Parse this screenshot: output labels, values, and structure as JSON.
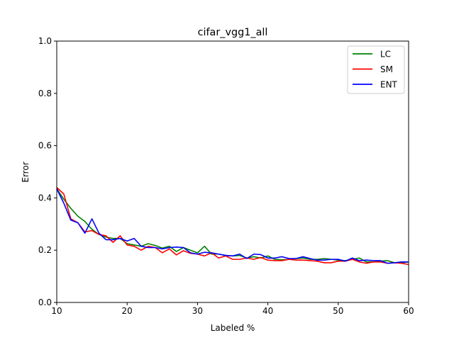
{
  "chart_data": {
    "type": "line",
    "title": "cifar_vgg1_all",
    "xlabel": "Labeled %",
    "ylabel": "Error",
    "xlim": [
      10,
      60
    ],
    "ylim": [
      0.0,
      1.0
    ],
    "xticks": [
      10,
      20,
      30,
      40,
      50,
      60
    ],
    "xtick_labels": [
      "10",
      "20",
      "30",
      "40",
      "50",
      "60"
    ],
    "yticks": [
      0.0,
      0.2,
      0.4,
      0.6,
      0.8,
      1.0
    ],
    "ytick_labels": [
      "0.0",
      "0.2",
      "0.4",
      "0.6",
      "0.8",
      "1.0"
    ],
    "grid": false,
    "legend_position": "top-right",
    "x": [
      10,
      11,
      12,
      13,
      14,
      15,
      16,
      17,
      18,
      19,
      20,
      21,
      22,
      23,
      24,
      25,
      26,
      27,
      28,
      29,
      30,
      31,
      32,
      33,
      34,
      35,
      36,
      37,
      38,
      39,
      40,
      41,
      42,
      43,
      44,
      45,
      46,
      47,
      48,
      49,
      50,
      51,
      52,
      53,
      54,
      55,
      56,
      57,
      58,
      59,
      60
    ],
    "series": [
      {
        "name": "LC",
        "color": "#008000",
        "values": [
          0.435,
          0.395,
          0.36,
          0.33,
          0.31,
          0.28,
          0.26,
          0.25,
          0.245,
          0.245,
          0.225,
          0.22,
          0.215,
          0.225,
          0.218,
          0.208,
          0.215,
          0.195,
          0.21,
          0.2,
          0.19,
          0.215,
          0.185,
          0.185,
          0.18,
          0.178,
          0.18,
          0.17,
          0.175,
          0.17,
          0.178,
          0.165,
          0.163,
          0.165,
          0.168,
          0.17,
          0.165,
          0.165,
          0.168,
          0.165,
          0.162,
          0.16,
          0.165,
          0.17,
          0.155,
          0.155,
          0.158,
          0.16,
          0.152,
          0.152,
          0.155
        ]
      },
      {
        "name": "SM",
        "color": "#ff0000",
        "values": [
          0.44,
          0.415,
          0.32,
          0.305,
          0.27,
          0.275,
          0.26,
          0.255,
          0.23,
          0.255,
          0.22,
          0.215,
          0.2,
          0.215,
          0.21,
          0.19,
          0.205,
          0.182,
          0.198,
          0.188,
          0.185,
          0.178,
          0.19,
          0.17,
          0.178,
          0.165,
          0.165,
          0.17,
          0.165,
          0.172,
          0.162,
          0.16,
          0.16,
          0.165,
          0.162,
          0.162,
          0.16,
          0.158,
          0.152,
          0.152,
          0.158,
          0.158,
          0.165,
          0.155,
          0.15,
          0.155,
          0.155,
          0.15,
          0.152,
          0.15,
          0.145
        ]
      },
      {
        "name": "ENT",
        "color": "#0000ff",
        "values": [
          0.435,
          0.38,
          0.315,
          0.305,
          0.265,
          0.32,
          0.265,
          0.24,
          0.24,
          0.245,
          0.235,
          0.245,
          0.215,
          0.21,
          0.21,
          0.205,
          0.21,
          0.212,
          0.21,
          0.19,
          0.185,
          0.192,
          0.19,
          0.185,
          0.18,
          0.178,
          0.185,
          0.168,
          0.185,
          0.183,
          0.17,
          0.17,
          0.175,
          0.168,
          0.168,
          0.175,
          0.168,
          0.162,
          0.162,
          0.165,
          0.165,
          0.158,
          0.17,
          0.16,
          0.162,
          0.16,
          0.16,
          0.15,
          0.152,
          0.155,
          0.155
        ]
      }
    ]
  }
}
